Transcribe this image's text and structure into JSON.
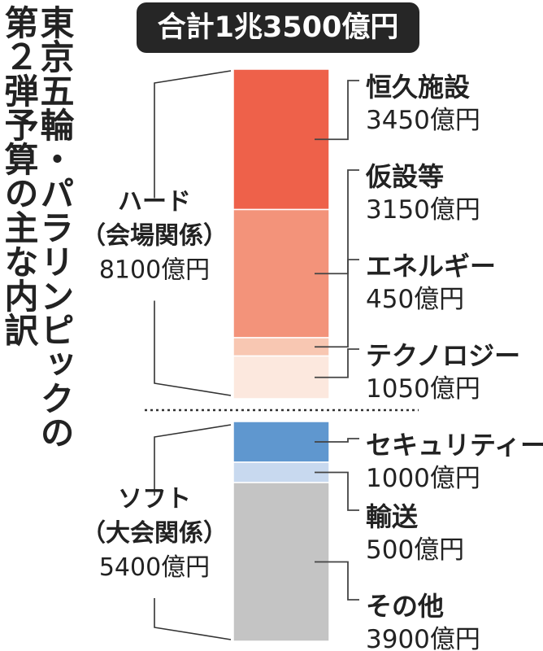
{
  "title": {
    "col1": "東京五輪・パラリンピックの",
    "col2": "第２弾予算の主な内訳"
  },
  "total_label": "合計1兆3500億円",
  "groups": [
    {
      "name": "ハード",
      "sub": "（会場関係）",
      "amount": "8100億円"
    },
    {
      "name": "ソフト",
      "sub": "（大会関係）",
      "amount": "5400億円"
    }
  ],
  "colors": {
    "恒久施設": "#ee614a",
    "仮設等": "#f3937a",
    "エネルギー": "#f8c7b2",
    "テクノロジー": "#fce8de",
    "セキュリティー": "#5f97cf",
    "輸送": "#c8d9ef",
    "その他": "#c4c4c4"
  },
  "chart_data": {
    "type": "bar",
    "orientation": "stacked-vertical",
    "title": "東京五輪・パラリンピックの第２弾予算の主な内訳",
    "unit": "億円",
    "total": 13500,
    "categories": [
      "恒久施設",
      "仮設等",
      "エネルギー",
      "テクノロジー",
      "セキュリティー",
      "輸送",
      "その他"
    ],
    "values": [
      3450,
      3150,
      450,
      1050,
      1000,
      500,
      3900
    ],
    "value_labels": [
      "3450億円",
      "3150億円",
      "450億円",
      "1050億円",
      "1000億円",
      "500億円",
      "3900億円"
    ],
    "groups": [
      {
        "name": "ハード（会場関係）",
        "value": 8100,
        "members": [
          "恒久施設",
          "仮設等",
          "エネルギー",
          "テクノロジー"
        ]
      },
      {
        "name": "ソフト（大会関係）",
        "value": 5400,
        "members": [
          "セキュリティー",
          "輸送",
          "その他"
        ]
      }
    ]
  }
}
